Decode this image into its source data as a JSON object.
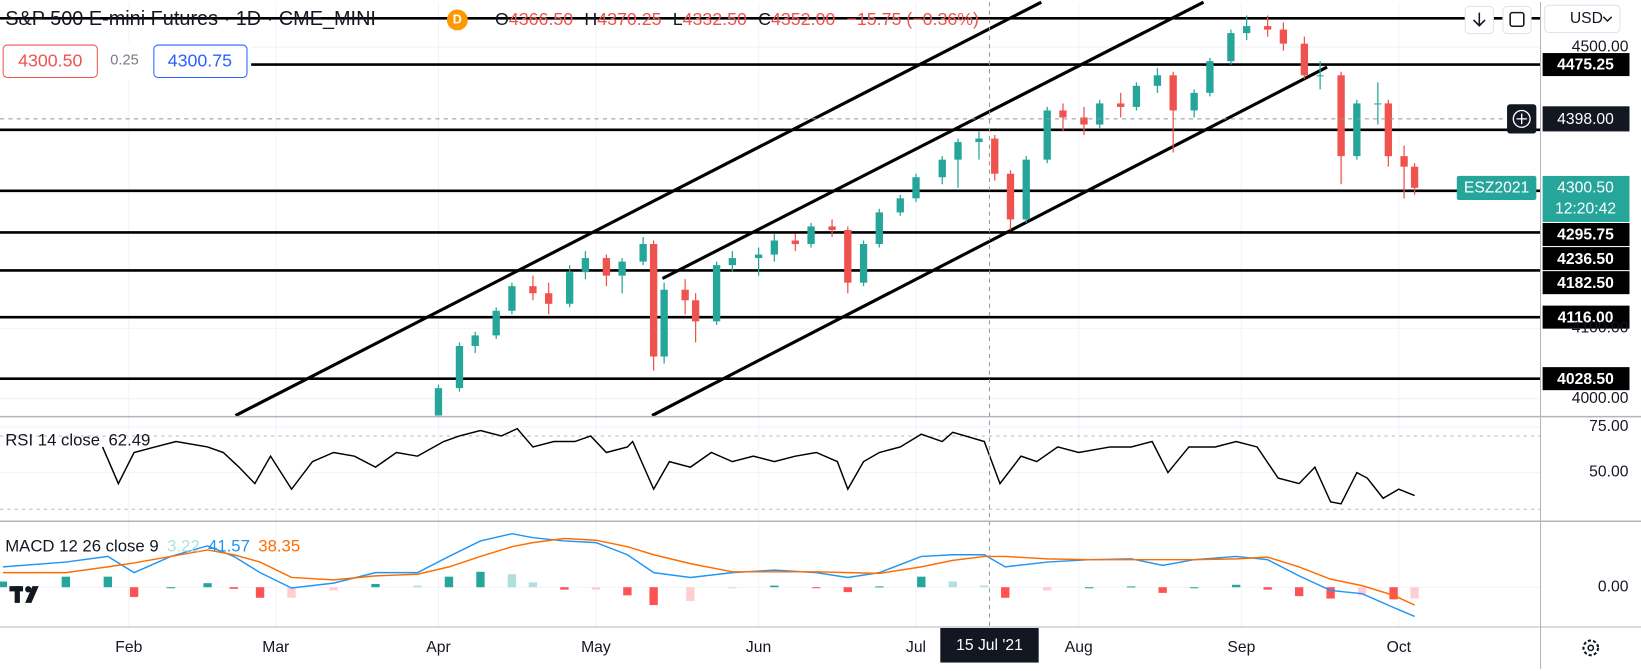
{
  "header": {
    "title": "S&P 500 E-mini Futures · 1D · CME_MINI",
    "badge": "D",
    "open_label": "O",
    "open": "4366.50",
    "high_label": "H",
    "high": "4370.25",
    "low_label": "L",
    "low": "4332.50",
    "close_label": "C",
    "close": "4352.00",
    "change": "−15.75 (−0.36%)",
    "sell": "4300.50",
    "spread": "0.25",
    "buy": "4300.75",
    "currency": "USD"
  },
  "chart_data": [
    {
      "type": "candlestick",
      "up_color": "#26a69a",
      "down_color": "#ef5350",
      "xlim": [
        7.45,
        301
      ],
      "ylim": [
        3976,
        4564
      ],
      "yticks": [
        {
          "value": 4000,
          "label": "4000.00"
        },
        {
          "value": 4100,
          "label": "4100.00"
        },
        {
          "value": 4500,
          "label": "4500.00"
        }
      ],
      "x": [
        91,
        95,
        98,
        102,
        105,
        109,
        112,
        116,
        119,
        123,
        126,
        130,
        132,
        134,
        138,
        140,
        144,
        147,
        152,
        155,
        159,
        162,
        166,
        169,
        172,
        175,
        179,
        182,
        187,
        190,
        194,
        197,
        200,
        203,
        207,
        210,
        214,
        217,
        221,
        224,
        228,
        231,
        235,
        238,
        242,
        245,
        249,
        252,
        256,
        259,
        263,
        266,
        270,
        272,
        275,
        277
      ],
      "open": [
        3975,
        4015,
        4075,
        4090,
        4125,
        4160,
        4150,
        4135,
        4180,
        4200,
        4175,
        4195,
        4220,
        4060,
        4155,
        4140,
        4110,
        4190,
        4200,
        4205,
        4225,
        4220,
        4245,
        4240,
        4165,
        4220,
        4265,
        4285,
        4315,
        4340,
        4365,
        4370,
        4320,
        4255,
        4340,
        4410,
        4400,
        4390,
        4420,
        4415,
        4445,
        4460,
        4410,
        4435,
        4480,
        4520,
        4530,
        4525,
        4505,
        4460,
        4460,
        4345,
        4420,
        4420,
        4345,
        4330
      ],
      "high": [
        4020,
        4080,
        4095,
        4130,
        4165,
        4175,
        4165,
        4190,
        4210,
        4205,
        4200,
        4230,
        4225,
        4165,
        4170,
        4150,
        4195,
        4210,
        4215,
        4235,
        4235,
        4250,
        4255,
        4245,
        4225,
        4270,
        4290,
        4320,
        4345,
        4370,
        4380,
        4375,
        4325,
        4345,
        4415,
        4420,
        4415,
        4425,
        4435,
        4450,
        4470,
        4465,
        4440,
        4485,
        4525,
        4545,
        4545,
        4535,
        4515,
        4480,
        4465,
        4425,
        4450,
        4425,
        4360,
        4335
      ],
      "low": [
        3970,
        4010,
        4065,
        4085,
        4120,
        4140,
        4120,
        4130,
        4170,
        4160,
        4150,
        4190,
        4040,
        4050,
        4120,
        4080,
        4105,
        4180,
        4175,
        4195,
        4210,
        4215,
        4230,
        4150,
        4160,
        4215,
        4260,
        4280,
        4305,
        4300,
        4340,
        4310,
        4240,
        4250,
        4335,
        4380,
        4375,
        4385,
        4400,
        4410,
        4435,
        4350,
        4400,
        4430,
        4475,
        4510,
        4515,
        4495,
        4455,
        4440,
        4305,
        4340,
        4390,
        4330,
        4285,
        4290
      ],
      "close": [
        4015,
        4075,
        4090,
        4125,
        4160,
        4150,
        4135,
        4180,
        4200,
        4175,
        4195,
        4220,
        4060,
        4155,
        4140,
        4110,
        4190,
        4200,
        4205,
        4225,
        4220,
        4245,
        4240,
        4165,
        4220,
        4265,
        4285,
        4315,
        4340,
        4365,
        4370,
        4320,
        4255,
        4340,
        4410,
        4400,
        4390,
        4420,
        4415,
        4445,
        4460,
        4410,
        4435,
        4480,
        4520,
        4530,
        4525,
        4505,
        4460,
        4460,
        4345,
        4420,
        4420,
        4345,
        4330,
        4300
      ],
      "levels": [
        {
          "value": 4541
        },
        {
          "value": 4475.25,
          "label": "4475.25"
        },
        {
          "value": 4382.5
        },
        {
          "value": 4295.75,
          "label": "4295.75"
        },
        {
          "value": 4236.5,
          "label": "4236.50"
        },
        {
          "value": 4182.5,
          "label": "4182.50"
        },
        {
          "value": 4116,
          "label": "4116.00"
        },
        {
          "value": 4028.5,
          "label": "4028.50"
        }
      ],
      "level_color": "#000000",
      "crosshair": {
        "x": {
          "value": 196,
          "label": "15 Jul '21"
        },
        "y": {
          "value": 4398,
          "label": "4398.00"
        }
      },
      "last": {
        "name": "ESZ2021",
        "value": 4300.5,
        "label": "4300.50",
        "countdown": "12:20:42",
        "color": "#26a69a"
      }
    },
    {
      "type": "line",
      "title": "RSI 14 close",
      "legend_value": 62.49,
      "xlim": [
        7.45,
        301
      ],
      "ylim": [
        24,
        80
      ],
      "yticks": [
        {
          "value": 75,
          "label": "75.00"
        },
        {
          "value": 50,
          "label": "50.00"
        }
      ],
      "bands": [
        30,
        70
      ],
      "x": [
        27,
        30,
        33,
        37,
        41,
        47,
        50,
        53,
        56,
        59,
        63,
        67,
        71,
        75,
        79,
        83,
        87,
        92,
        95,
        99,
        103,
        106,
        109,
        113,
        117,
        120,
        123,
        127,
        128,
        132,
        135,
        139,
        143,
        147,
        151,
        155,
        159,
        163,
        167,
        169,
        172,
        175,
        179,
        183,
        187,
        189,
        195,
        198,
        202,
        205,
        209,
        213,
        219,
        223,
        227,
        230,
        234,
        239,
        243,
        247,
        251,
        255,
        258,
        261,
        263,
        266,
        268,
        271,
        274,
        277
      ],
      "series": [
        {
          "color": "#000000",
          "values": [
            64,
            44,
            61,
            64,
            67,
            64,
            61,
            53,
            44,
            59,
            41,
            56,
            61,
            59,
            53,
            61,
            59,
            67,
            70,
            73,
            70,
            74,
            64,
            67,
            67,
            70,
            61,
            64,
            67,
            41,
            56,
            53,
            61,
            56,
            59,
            56,
            59,
            61,
            56,
            41,
            56,
            61,
            64,
            71,
            67,
            72,
            67,
            44,
            59,
            56,
            64,
            61,
            64,
            64,
            67,
            50,
            64,
            64,
            67,
            64,
            47,
            44,
            53,
            34,
            33,
            50,
            47,
            36,
            41,
            37.5
          ]
        }
      ]
    },
    {
      "type": "macd",
      "title": "MACD 12 26 close 9",
      "xlim": [
        7.45,
        301
      ],
      "ylim": [
        -49,
        80
      ],
      "yticks": [
        {
          "value": 0,
          "label": "0.00"
        }
      ],
      "xticks": [
        {
          "value": 32,
          "label": "Feb"
        },
        {
          "value": 60,
          "label": "Mar"
        },
        {
          "value": 91,
          "label": "Apr"
        },
        {
          "value": 121,
          "label": "May"
        },
        {
          "value": 152,
          "label": "Jun"
        },
        {
          "value": 182,
          "label": "Jul"
        },
        {
          "value": 213,
          "label": "Aug"
        },
        {
          "value": 244,
          "label": "Sep"
        },
        {
          "value": 274,
          "label": "Oct"
        }
      ],
      "x": [
        8,
        20,
        28,
        33,
        40,
        47,
        52,
        57,
        63,
        71,
        79,
        87,
        93,
        99,
        105,
        109,
        115,
        121,
        127,
        132,
        139,
        147,
        155,
        163,
        169,
        175,
        183,
        189,
        195,
        199,
        207,
        215,
        223,
        229,
        235,
        243,
        249,
        255,
        261,
        267,
        273,
        277
      ],
      "histogram": {
        "legend_value": 3.22,
        "colors": [
          "#26a69a",
          "#b2dfdb",
          "#ffcdd2",
          "#ff5252"
        ],
        "values": [
          7,
          13,
          13,
          -12,
          0,
          5,
          -2,
          -13,
          -13,
          -4,
          4,
          2,
          13,
          19,
          16,
          6,
          -3,
          -3,
          -10,
          -22,
          -17,
          -1,
          2,
          -1,
          -6,
          1,
          13,
          7,
          2,
          -13,
          -4,
          0,
          1,
          -7,
          0,
          3,
          -3,
          -11,
          -14,
          -10,
          -15,
          -14
        ]
      },
      "series": [
        {
          "legend_value": 41.57,
          "color": "#2196f3",
          "values": [
            25,
            31,
            38,
            18,
            38,
            51,
            38,
            18,
            -1,
            5,
            18,
            18,
            38,
            57,
            66,
            61,
            57,
            55,
            40,
            18,
            12,
            18,
            21,
            18,
            12,
            18,
            38,
            40,
            40,
            25,
            31,
            34,
            35,
            27,
            34,
            38,
            34,
            14,
            -4,
            -8,
            -25,
            -36
          ]
        },
        {
          "legend_value": 38.35,
          "color": "#ff6d00",
          "values": [
            18,
            18,
            25,
            30,
            38,
            46,
            40,
            31,
            12,
            9,
            14,
            16,
            25,
            38,
            50,
            55,
            60,
            58,
            50,
            40,
            29,
            19,
            19,
            19,
            18,
            17,
            25,
            33,
            38,
            38,
            35,
            34,
            34,
            34,
            34,
            35,
            37,
            25,
            10,
            2,
            -10,
            -22
          ]
        }
      ]
    }
  ]
}
